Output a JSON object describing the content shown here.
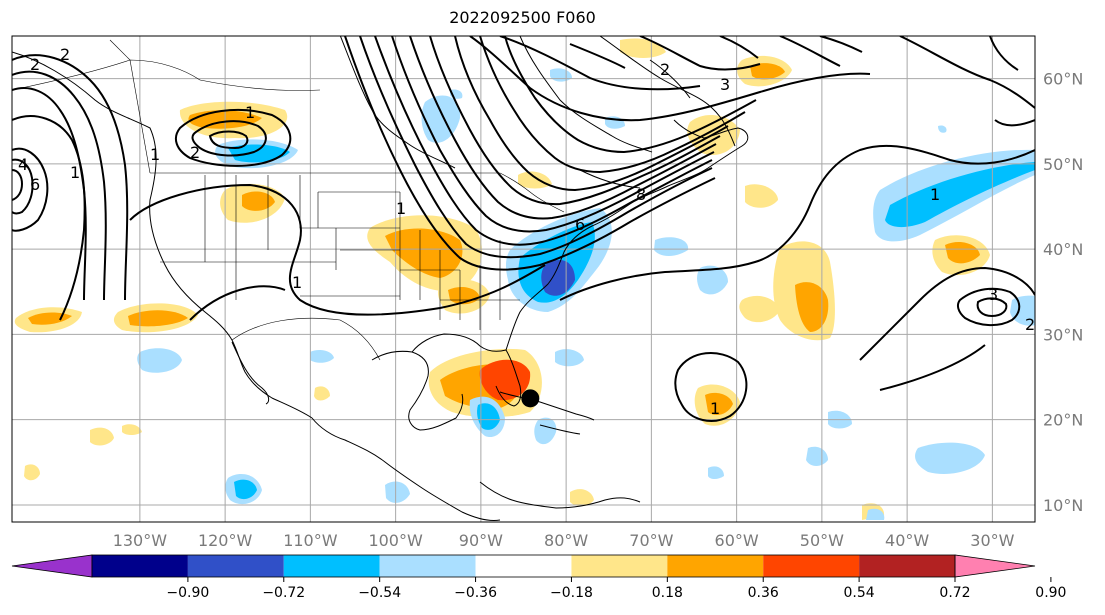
{
  "title": "2022092500 F060",
  "map": {
    "extent": {
      "lon_min": -145,
      "lon_max": -25,
      "lat_min": 8,
      "lat_max": 65
    },
    "lon_labels": [
      "130°W",
      "120°W",
      "110°W",
      "100°W",
      "90°W",
      "80°W",
      "70°W",
      "60°W",
      "50°W",
      "40°W",
      "30°W"
    ],
    "lon_values": [
      -130,
      -120,
      -110,
      -100,
      -90,
      -80,
      -70,
      -60,
      -50,
      -40,
      -30
    ],
    "lat_labels": [
      "10°N",
      "20°N",
      "30°N",
      "40°N",
      "50°N",
      "60°N"
    ],
    "lat_values": [
      10,
      20,
      30,
      40,
      50,
      60
    ],
    "gridlines": true,
    "storm_marker": {
      "lon": -84.2,
      "lat": 22.5,
      "color": "#000000"
    }
  },
  "colorbar": {
    "ticks": [
      "−0.90",
      "−0.72",
      "−0.54",
      "−0.36",
      "−0.18",
      "0.18",
      "0.36",
      "0.54",
      "0.72",
      "0.90"
    ],
    "colors": [
      "#9932cc",
      "#00008b",
      "#3050c8",
      "#00bfff",
      "#aadfff",
      "#ffffff",
      "#ffe68a",
      "#ffa500",
      "#ff4500",
      "#b22222",
      "#ff80b0"
    ],
    "extend": "both"
  },
  "contour_labels": [
    "2",
    "2",
    "2",
    "1",
    "1",
    "1",
    "1",
    "1",
    "1",
    "1",
    "2",
    "2",
    "3",
    "3",
    "6",
    "4",
    "6",
    "8"
  ],
  "shading_colors": {
    "light_blue": "#aadfff",
    "blue": "#00bfff",
    "medium_blue": "#3050c8",
    "yellow": "#ffe68a",
    "orange": "#ffa500",
    "red": "#ff4500"
  }
}
